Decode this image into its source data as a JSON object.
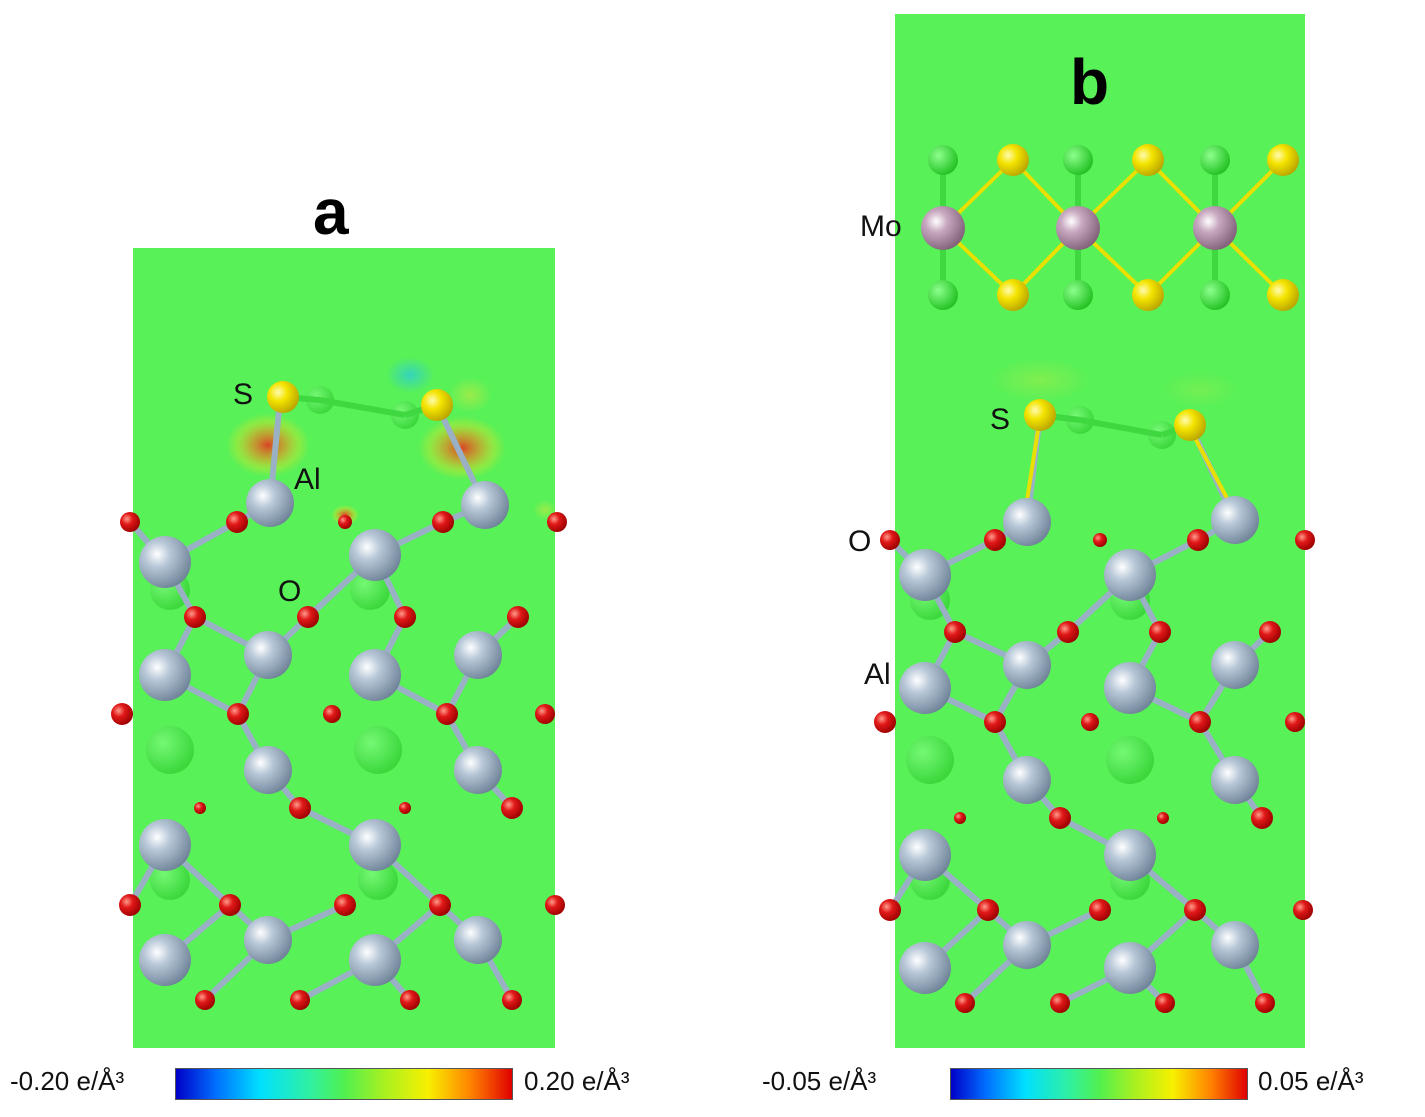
{
  "panels": [
    {
      "letter": "a",
      "atom_labels": {
        "s": "S",
        "al": "Al",
        "o": "O"
      },
      "colorbar": {
        "min_label": "-0.20 e/Å³",
        "max_label": "0.20 e/Å³"
      }
    },
    {
      "letter": "b",
      "atom_labels": {
        "mo": "Mo",
        "s": "S",
        "o": "O",
        "al": "Al"
      },
      "colorbar": {
        "min_label": "-0.05 e/Å³",
        "max_label": "0.05 e/Å³"
      }
    }
  ],
  "colors": {
    "background_field": "#58f158",
    "aluminum": "#8fa6bd",
    "oxygen": "#d81010",
    "sulfur": "#f2e000",
    "molybdenum": "#a88aa0",
    "faded_atom": "#30d830",
    "bond": "#9ab0c4",
    "charge_positive": "#e84030",
    "charge_yellow": "#f0e020"
  }
}
